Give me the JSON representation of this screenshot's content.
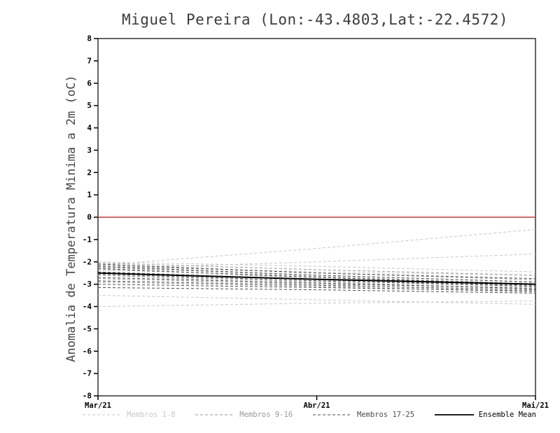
{
  "page": {
    "background": "#ffffff"
  },
  "chart_data": {
    "type": "line",
    "title": "Miguel Pereira (Lon:-43.4803,Lat:-22.4572)",
    "ylabel": "Anomalia de Temperatura Minima a 2m (oC)",
    "xlabel": "",
    "x_ticks": [
      "Mar/21",
      "Abr/21",
      "Mai/21"
    ],
    "ylim": [
      -8,
      8
    ],
    "y_tick_step": 1,
    "grid": false,
    "legend_position": "bottom",
    "axis_color": "#000000",
    "zero_line": {
      "y": 0,
      "color": "#ff2020"
    },
    "groups": [
      {
        "name": "Membros 1-8",
        "color": "#c7c7c7",
        "dash": "4 3",
        "members": [
          [
            -2.15,
            -1.4,
            -0.55
          ],
          [
            -2.3,
            -2.0,
            -1.65
          ],
          [
            -2.0,
            -2.2,
            -2.45
          ],
          [
            -2.45,
            -2.7,
            -2.95
          ],
          [
            -2.6,
            -3.0,
            -3.35
          ],
          [
            -3.5,
            -3.7,
            -3.9
          ],
          [
            -4.0,
            -3.85,
            -3.75
          ],
          [
            -2.2,
            -2.45,
            -2.6
          ]
        ]
      },
      {
        "name": "Membros 9-16",
        "color": "#979797",
        "dash": "4 3",
        "members": [
          [
            -2.05,
            -2.35,
            -2.6
          ],
          [
            -2.15,
            -2.5,
            -2.8
          ],
          [
            -2.25,
            -2.6,
            -2.9
          ],
          [
            -2.35,
            -2.65,
            -3.0
          ],
          [
            -2.5,
            -2.8,
            -3.1
          ],
          [
            -2.6,
            -2.9,
            -3.2
          ],
          [
            -2.75,
            -3.0,
            -3.15
          ],
          [
            -2.9,
            -3.1,
            -3.35
          ]
        ]
      },
      {
        "name": "Membros 17-25",
        "color": "#4d4d4d",
        "dash": "4 3",
        "members": [
          [
            -2.1,
            -2.5,
            -2.75
          ],
          [
            -2.2,
            -2.6,
            -2.9
          ],
          [
            -2.3,
            -2.7,
            -3.0
          ],
          [
            -2.45,
            -2.8,
            -3.05
          ],
          [
            -2.55,
            -2.85,
            -3.1
          ],
          [
            -2.7,
            -2.95,
            -3.2
          ],
          [
            -2.85,
            -3.05,
            -3.25
          ],
          [
            -3.0,
            -3.15,
            -3.3
          ],
          [
            -3.15,
            -3.25,
            -3.4
          ]
        ]
      }
    ],
    "mean": {
      "name": "Ensemble Mean",
      "color": "#000000",
      "values": [
        -2.5,
        -2.78,
        -3.0
      ]
    }
  }
}
